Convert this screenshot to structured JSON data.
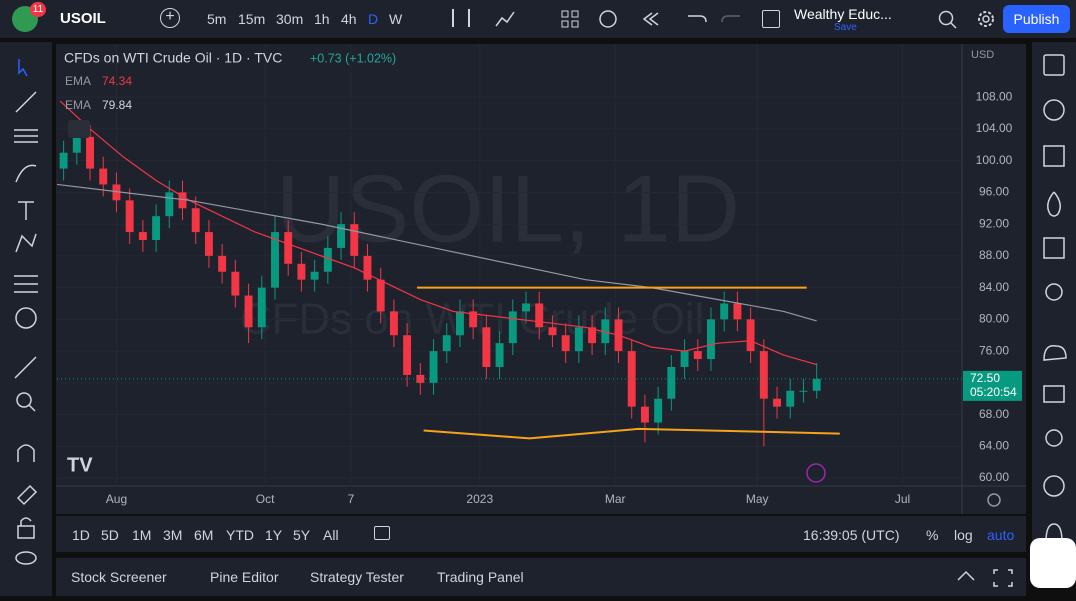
{
  "header": {
    "symbol": "USOIL",
    "badge": "11",
    "intervals": [
      "5m",
      "15m",
      "30m",
      "1h",
      "4h",
      "D",
      "W"
    ],
    "layout_name": "Wealthy Educ...",
    "layout_status": "Save",
    "publish": "Publish"
  },
  "chart_data": {
    "type": "candlestick",
    "title": "CFDs on WTI Crude Oil · 1D · TVC",
    "change": "+0.73 (+1.02%)",
    "watermark": [
      "USOIL, 1D",
      "CFDs on WTI Crude Oil"
    ],
    "currency": "USD",
    "up_color": "#089981",
    "down_color": "#f23645",
    "x": [
      2,
      6,
      10,
      14,
      18,
      22,
      26,
      30,
      34,
      38,
      42,
      46,
      50,
      54,
      58,
      62,
      66,
      70,
      74,
      78,
      82,
      86,
      90,
      94,
      98,
      102,
      106,
      110,
      114,
      118,
      122,
      126,
      130,
      134,
      138,
      142,
      146,
      150,
      154,
      158,
      162,
      166,
      170,
      174,
      178,
      182,
      186,
      190,
      194,
      198,
      202,
      206,
      210,
      214,
      218,
      222,
      226,
      230
    ],
    "ohlc": [
      [
        99,
        102.5,
        97.5,
        101
      ],
      [
        101,
        105,
        99.5,
        103
      ],
      [
        103,
        104.5,
        97.5,
        99
      ],
      [
        99,
        100.5,
        95.5,
        97
      ],
      [
        97,
        98.5,
        93.5,
        95
      ],
      [
        95,
        96.5,
        89.5,
        91
      ],
      [
        91,
        92.5,
        88.5,
        90
      ],
      [
        90,
        94.5,
        88.5,
        93
      ],
      [
        93,
        97.5,
        91.5,
        96
      ],
      [
        96,
        97.5,
        92.5,
        94
      ],
      [
        94,
        95.5,
        89.5,
        91
      ],
      [
        91,
        92.5,
        86.5,
        88
      ],
      [
        88,
        89.5,
        84.5,
        86
      ],
      [
        86,
        87.5,
        81.5,
        83
      ],
      [
        83,
        84.5,
        77,
        79
      ],
      [
        79,
        85.5,
        77.5,
        84
      ],
      [
        84,
        93,
        82.5,
        91
      ],
      [
        91,
        92.5,
        85.5,
        87
      ],
      [
        87,
        88.5,
        83.5,
        85
      ],
      [
        85,
        87.5,
        83.5,
        86
      ],
      [
        86,
        90.5,
        84.5,
        89
      ],
      [
        89,
        93.5,
        87.5,
        92
      ],
      [
        92,
        93.5,
        86.5,
        88
      ],
      [
        88,
        89.5,
        83.5,
        85
      ],
      [
        85,
        86.5,
        79.5,
        81
      ],
      [
        81,
        82.5,
        76.5,
        78
      ],
      [
        78,
        79.5,
        71.5,
        73
      ],
      [
        73,
        74.5,
        70.5,
        72
      ],
      [
        72,
        77.5,
        70.5,
        76
      ],
      [
        76,
        79.5,
        74.5,
        78
      ],
      [
        78,
        82.5,
        76.5,
        81
      ],
      [
        81,
        82.5,
        77.5,
        79
      ],
      [
        79,
        80.5,
        72.5,
        74
      ],
      [
        74,
        78.5,
        72.5,
        77
      ],
      [
        77,
        82.5,
        75.5,
        81
      ],
      [
        81,
        83.5,
        79.5,
        82
      ],
      [
        82,
        83.5,
        77.5,
        79
      ],
      [
        79,
        80.5,
        76.5,
        78
      ],
      [
        78,
        79.5,
        74.5,
        76
      ],
      [
        76,
        80.5,
        74.5,
        79
      ],
      [
        79,
        80.5,
        75.5,
        77
      ],
      [
        77,
        81.5,
        75.5,
        80
      ],
      [
        80,
        81.5,
        74.5,
        76
      ],
      [
        76,
        77.5,
        67.5,
        69
      ],
      [
        69,
        70.5,
        64.5,
        67
      ],
      [
        67,
        71.5,
        65.5,
        70
      ],
      [
        70,
        75.5,
        68.5,
        74
      ],
      [
        74,
        77.5,
        72.5,
        76
      ],
      [
        76,
        77.5,
        73.5,
        75
      ],
      [
        75,
        81.5,
        73.5,
        80
      ],
      [
        80,
        83.5,
        78.5,
        82
      ],
      [
        82,
        83.5,
        78.5,
        80
      ],
      [
        80,
        81.5,
        74.5,
        76
      ],
      [
        76,
        77.5,
        64,
        70
      ],
      [
        70,
        71.5,
        67.5,
        69
      ],
      [
        69,
        72.5,
        67.5,
        71
      ],
      [
        71,
        72.5,
        69.5,
        71
      ],
      [
        71,
        74.5,
        70,
        72.5
      ]
    ],
    "series": [
      {
        "name": "EMA",
        "legend_value": 74.34,
        "color": "#f23645",
        "x": [
          1,
          10,
          20,
          30,
          40,
          50,
          60,
          70,
          80,
          90,
          100,
          110,
          120,
          130,
          140,
          150,
          160,
          170,
          180,
          190,
          200,
          210,
          220,
          230
        ],
        "values": [
          107.5,
          104,
          100.5,
          97.5,
          95,
          93,
          91,
          89.5,
          88,
          86.5,
          84.5,
          82.5,
          81,
          80.5,
          80,
          79.5,
          79,
          78,
          76.5,
          76,
          77,
          77.3,
          75.5,
          74.3
        ]
      },
      {
        "name": "EMA",
        "legend_value": 79.84,
        "color": "#9598a1",
        "x": [
          0,
          40,
          80,
          120,
          160,
          180,
          200,
          220,
          230
        ],
        "values": [
          97,
          95,
          92,
          88.5,
          85,
          84,
          82.5,
          81,
          79.8
        ]
      }
    ],
    "drawings": [
      {
        "color": "#f7a21b",
        "x": [
          109,
          227
        ],
        "values": [
          84,
          84
        ]
      },
      {
        "color": "#f7a21b",
        "x": [
          111,
          143,
          176,
          237
        ],
        "values": [
          66,
          65,
          66.2,
          65.6
        ]
      }
    ],
    "last_price": {
      "value": 72.5,
      "label": "72.50"
    },
    "countdown": "05:20:54",
    "xlim": [
      0,
      274
    ],
    "ylim": [
      59,
      114.7
    ],
    "xticks": [
      {
        "value": 18,
        "label": "Aug"
      },
      {
        "value": 63,
        "label": "Oct"
      },
      {
        "value": 89,
        "label": "7"
      },
      {
        "value": 128,
        "label": "2023"
      },
      {
        "value": 169,
        "label": "Mar"
      },
      {
        "value": 212,
        "label": "May"
      },
      {
        "value": 256,
        "label": "Jul"
      }
    ],
    "yticks": [
      {
        "value": 60,
        "label": "60.00"
      },
      {
        "value": 64,
        "label": "64.00"
      },
      {
        "value": 68,
        "label": "68.00"
      },
      {
        "value": 72,
        "label": "72.00"
      },
      {
        "value": 76,
        "label": "76.00"
      },
      {
        "value": 80,
        "label": "80.00"
      },
      {
        "value": 84,
        "label": "84.00"
      },
      {
        "value": 88,
        "label": "88.00"
      },
      {
        "value": 92,
        "label": "92.00"
      },
      {
        "value": 96,
        "label": "96.00"
      },
      {
        "value": 100,
        "label": "100.00"
      },
      {
        "value": 104,
        "label": "104.00"
      },
      {
        "value": 108,
        "label": "108.00"
      }
    ]
  },
  "range_bar": {
    "ranges": [
      "1D",
      "5D",
      "1M",
      "3M",
      "6M",
      "YTD",
      "1Y",
      "5Y",
      "All"
    ],
    "clock": "16:39:05 (UTC)",
    "percent": "%",
    "log": "log",
    "auto": "auto"
  },
  "bottom_panel": {
    "tabs": [
      "Stock Screener",
      "Pine Editor",
      "Strategy Tester",
      "Trading Panel"
    ]
  }
}
